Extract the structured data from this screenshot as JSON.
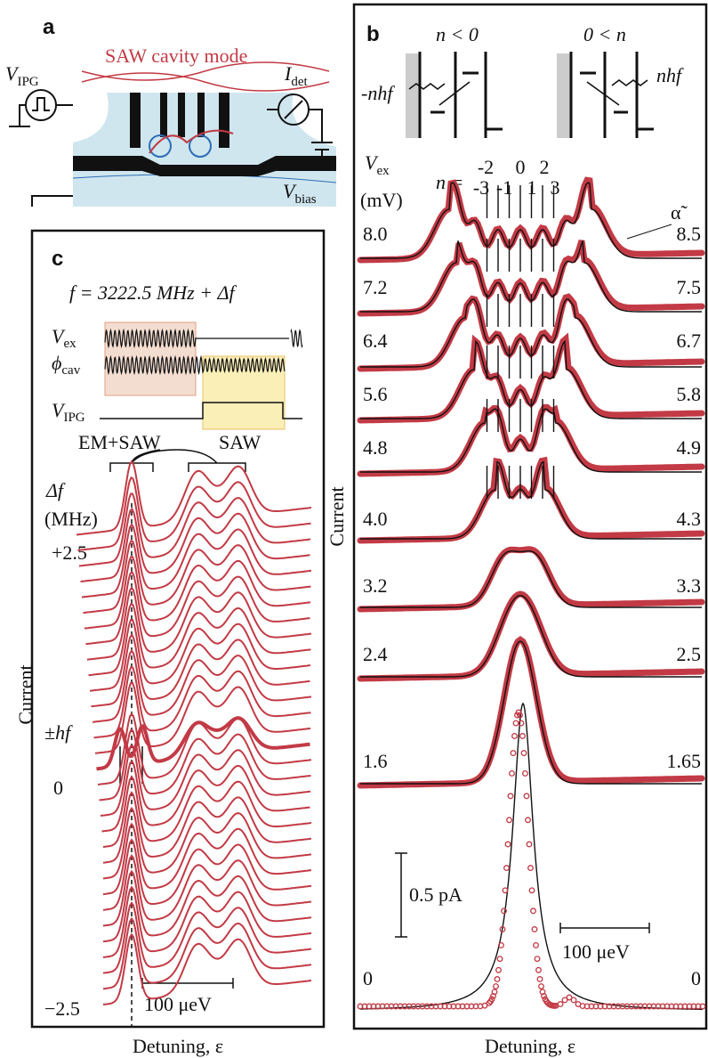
{
  "panels": {
    "a": {
      "label": "a",
      "v_ipg": {
        "symbol": "V",
        "sub": "IPG"
      },
      "cavity": "SAW cavity mode",
      "i_det": {
        "symbol": "I",
        "sub": "det"
      },
      "v_bias": {
        "symbol": "V",
        "sub": "bias"
      }
    },
    "b": {
      "label": "b",
      "n_neg": "n < 0",
      "n_pos": "0 < n",
      "neg_energy": "-nhf",
      "pos_energy": "nhf",
      "v_ex": {
        "symbol": "V",
        "sub": "ex"
      },
      "unit": "(mV)",
      "n_eq": "n =",
      "n_top": [
        "-2",
        "0",
        "2"
      ],
      "n_bottom": [
        "-3",
        "-1",
        "1",
        "3"
      ],
      "alpha": "α̃",
      "left_labels": [
        "8.0",
        "7.2",
        "6.4",
        "5.6",
        "4.8",
        "4.0",
        "3.2",
        "2.4",
        "1.6",
        "0"
      ],
      "right_labels": [
        "8.5",
        "7.5",
        "6.7",
        "5.8",
        "4.9",
        "4.3",
        "3.3",
        "2.5",
        "1.65",
        "0"
      ],
      "y_label": "Current",
      "scale_current": "0.5 pA",
      "scale_energy": "100 μeV",
      "x_label": "Detuning, ε"
    },
    "c": {
      "label": "c",
      "freq": "f = 3222.5 MHz + Δf",
      "v_ex": {
        "symbol": "V",
        "sub": "ex"
      },
      "phi_cav": {
        "symbol": "ϕ",
        "sub": "cav"
      },
      "v_ipg": {
        "symbol": "V",
        "sub": "IPG"
      },
      "em_saw": "EM+SAW",
      "saw": "SAW",
      "df": "Δf",
      "df_unit": "(MHz)",
      "top": "+2.5",
      "hf": "±hf",
      "zero": "0",
      "bottom": "−2.5",
      "scale_energy": "100 μeV",
      "y_label": "Current",
      "x_label": "Detuning, ε"
    }
  }
}
